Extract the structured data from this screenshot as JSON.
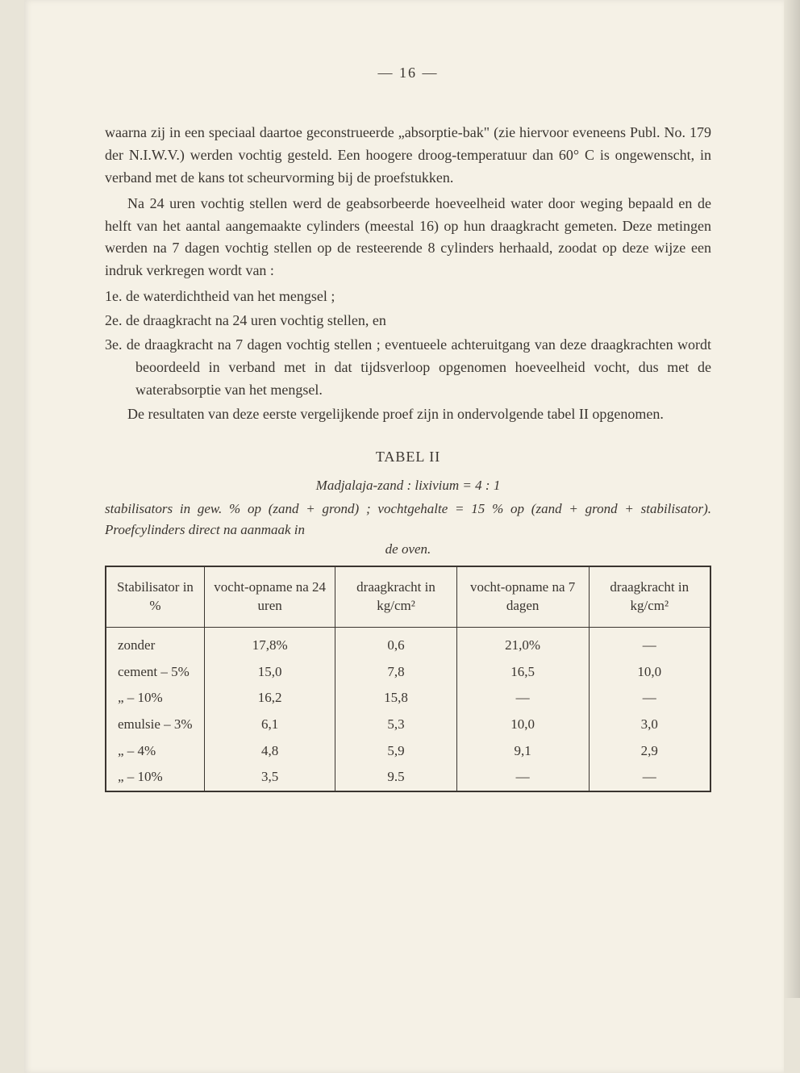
{
  "page_number": "— 16 —",
  "paragraphs": {
    "p1": "waarna zij in een speciaal daartoe geconstrueerde „absorptie-bak\" (zie hiervoor eveneens Publ. No. 179 der N.I.W.V.) werden vochtig gesteld. Een hoogere droog-temperatuur dan 60° C is ongewenscht, in verband met de kans tot scheurvorming bij de proefstukken.",
    "p2": "Na 24 uren vochtig stellen werd de geabsorbeerde hoeveelheid water door weging bepaald en de helft van het aantal aangemaakte cylinders (meestal 16) op hun draagkracht gemeten. Deze metingen werden na 7 dagen vochtig stellen op de resteerende 8 cylinders herhaald, zoodat op deze wijze een indruk verkregen wordt van :",
    "item1": "1e.  de waterdichtheid van het mengsel ;",
    "item2": "2e.  de draagkracht na 24 uren vochtig stellen, en",
    "item3": "3e.  de draagkracht na 7 dagen vochtig stellen ; eventueele achteruitgang van deze draagkrachten wordt beoordeeld in verband met in dat tijdsverloop opgenomen hoeveelheid vocht, dus met de waterabsorptie van het mengsel.",
    "p3": "De resultaten van deze eerste vergelijkende proef zijn in ondervolgende tabel II opgenomen."
  },
  "table": {
    "title": "TABEL II",
    "subtitle": "Madjalaja-zand : lixivium = 4 : 1",
    "caption1": "stabilisators in gew. % op (zand + grond) ;  vochtgehalte = 15 % op (zand + grond + stabilisator).  Proefcylinders direct na aanmaak in",
    "caption2": "de oven.",
    "headers": {
      "h1": "Stabilisator in %",
      "h2": "vocht-opname na 24 uren",
      "h3": "draagkracht in kg/cm²",
      "h4": "vocht-opname na 7 dagen",
      "h5": "draagkracht in kg/cm²"
    },
    "rows": [
      {
        "c1": "zonder",
        "c2": "17,8%",
        "c3": "0,6",
        "c4": "21,0%",
        "c5": "—"
      },
      {
        "c1": "cement  –   5%",
        "c2": "15,0",
        "c3": "7,8",
        "c4": "16,5",
        "c5": "10,0"
      },
      {
        "c1": "    „       – 10%",
        "c2": "16,2",
        "c3": "15,8",
        "c4": "—",
        "c5": "—"
      },
      {
        "c1": "emulsie  –   3%",
        "c2": "6,1",
        "c3": "5,3",
        "c4": "10,0",
        "c5": "3,0"
      },
      {
        "c1": "    „       –   4%",
        "c2": "4,8",
        "c3": "5,9",
        "c4": "9,1",
        "c5": "2,9"
      },
      {
        "c1": "    „       – 10%",
        "c2": "3,5",
        "c3": "9.5",
        "c4": "—",
        "c5": "—"
      }
    ]
  },
  "colors": {
    "page_bg": "#f5f1e6",
    "outer_bg": "#e8e4d8",
    "text": "#3a3530",
    "border": "#3a3530"
  }
}
